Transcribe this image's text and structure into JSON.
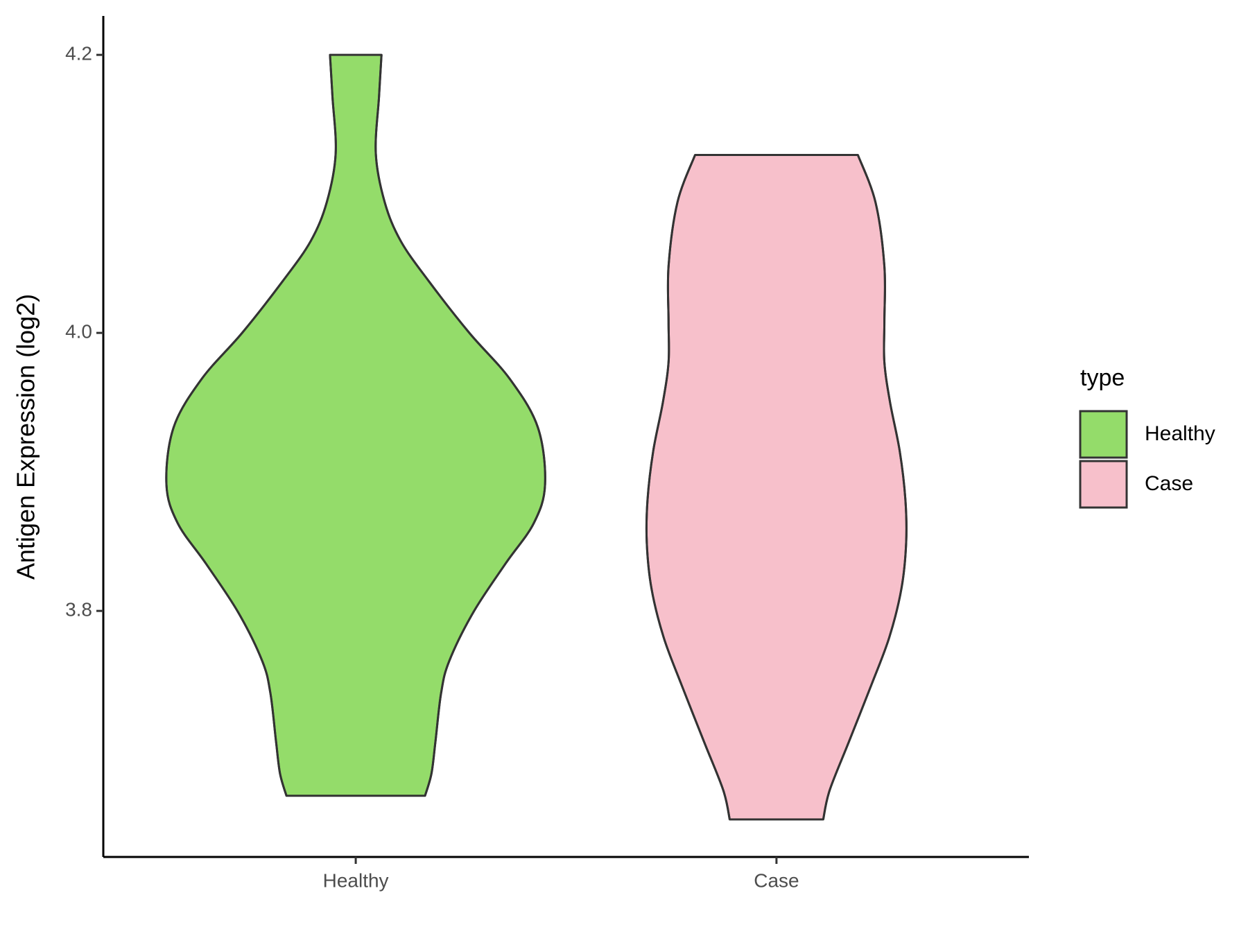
{
  "chart_data": {
    "type": "violin",
    "y_label": "Antigen Expression (log2)",
    "legend_title": "type",
    "legend": "right",
    "categories": [
      "Healthy",
      "Case"
    ],
    "series": [
      {
        "name": "Healthy",
        "color": "#94dc6a",
        "y": [
          4.2,
          4.17,
          4.129,
          4.094,
          4.066,
          4.037,
          4.0,
          3.967,
          3.932,
          3.891,
          3.863,
          3.834,
          3.799,
          3.764,
          3.741,
          3.706,
          3.683,
          3.667
        ],
        "density": [
          0.136,
          0.123,
          0.106,
          0.153,
          0.238,
          0.387,
          0.6,
          0.813,
          0.962,
          1,
          0.94,
          0.791,
          0.621,
          0.494,
          0.451,
          0.421,
          0.4,
          0.366
        ]
      },
      {
        "name": "Case",
        "color": "#f7c0cb",
        "y": [
          4.128,
          4.094,
          4.048,
          4.008,
          3.979,
          3.95,
          3.915,
          3.88,
          3.849,
          3.816,
          3.781,
          3.747,
          3.706,
          3.671,
          3.65
        ],
        "density": [
          0.43,
          0.523,
          0.57,
          0.57,
          0.57,
          0.6,
          0.651,
          0.681,
          0.685,
          0.66,
          0.596,
          0.502,
          0.383,
          0.281,
          0.247
        ]
      }
    ],
    "ylim": [
      3.623,
      4.228
    ],
    "yticks": [
      3.8,
      {
        "value": 4.0,
        "label": "4.0"
      },
      4.2
    ]
  }
}
